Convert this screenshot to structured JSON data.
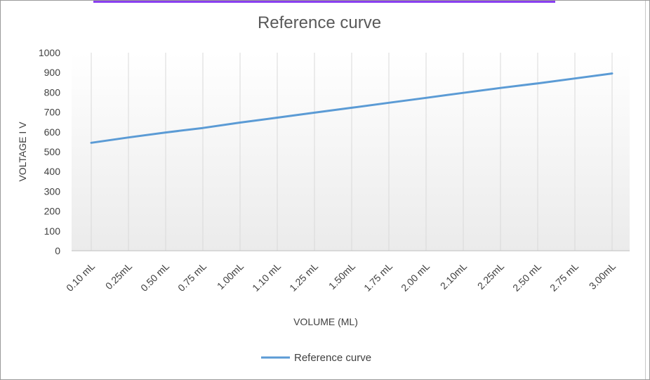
{
  "chart_data": {
    "type": "line",
    "title": "Reference curve",
    "xlabel": "VOLUME (ML)",
    "ylabel": "VOLTAGE I V",
    "categories": [
      "0.10 mL",
      "0.25mL",
      "0.50 mL",
      "0.75 mL",
      "1.00mL",
      "1.10 mL",
      "1.25 mL",
      "1.50mL",
      "1.75 mL",
      "2.00 mL",
      "2.10mL",
      "2.25mL",
      "2.50 mL",
      "2.75 mL",
      "3.00mL"
    ],
    "series": [
      {
        "name": "Reference curve",
        "values": [
          545,
          572,
          597,
          620,
          647,
          672,
          697,
          722,
          747,
          772,
          797,
          822,
          845,
          870,
          895
        ],
        "color": "#5b9bd5"
      }
    ],
    "ylim": [
      0,
      1000
    ],
    "yticks": [
      0,
      100,
      200,
      300,
      400,
      500,
      600,
      700,
      800,
      900,
      1000
    ],
    "grid": "vertical",
    "legend": "bottom"
  },
  "colors": {
    "accent_bar": "#8a3ff0",
    "series_line": "#5b9bd5"
  }
}
